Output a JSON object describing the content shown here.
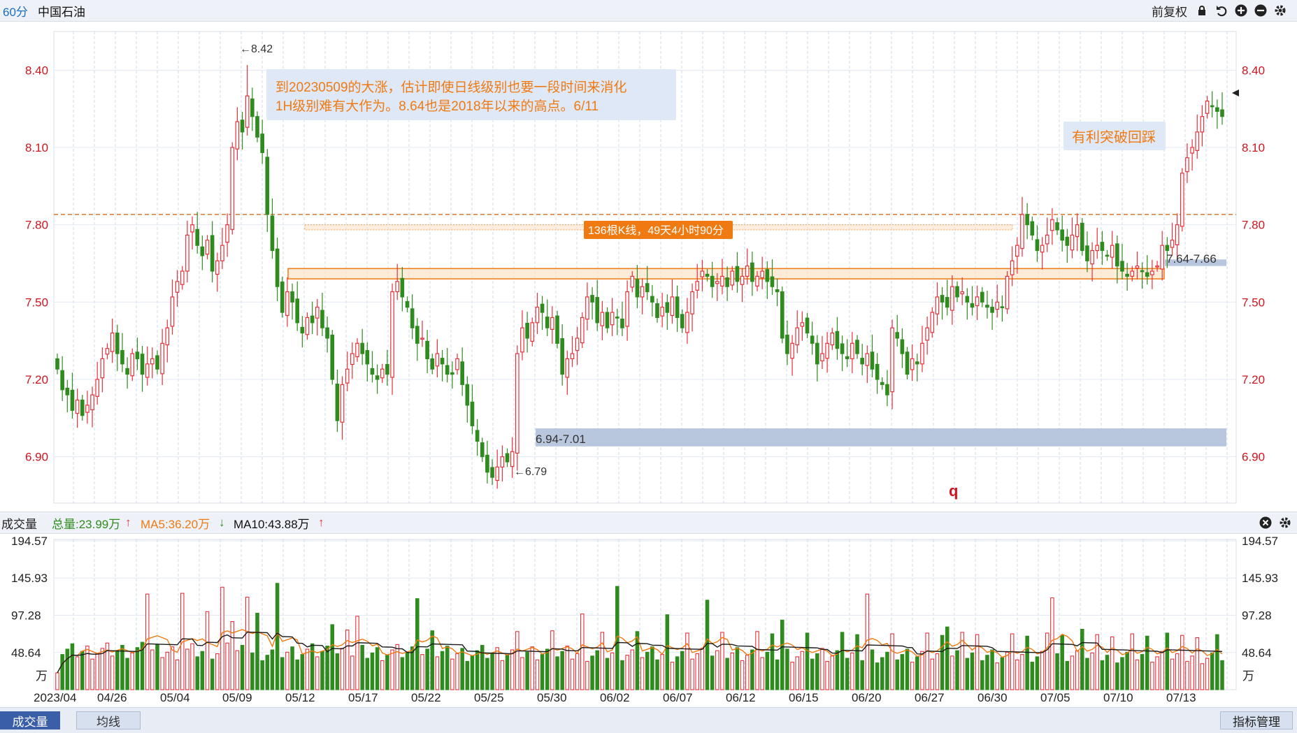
{
  "header": {
    "period": "60分",
    "stock_name": "中国石油",
    "adjust": "前复权",
    "icons": [
      "lock-icon",
      "undo-icon",
      "zoom-in-icon",
      "zoom-out-icon",
      "gear-icon"
    ]
  },
  "colors": {
    "up": "#e8303a",
    "down": "#2e8b1e",
    "ma5": "#f07a12",
    "ma10": "#1a1a1a",
    "band": "#b9c7de",
    "accent": "#1a6fc4"
  },
  "chart_data": {
    "type": "candlestick",
    "price_axis": {
      "ticks": [
        "8.40",
        "8.10",
        "7.80",
        "7.50",
        "7.20",
        "6.90"
      ],
      "range": [
        6.72,
        8.55
      ]
    },
    "x_tick_labels": [
      "2023/04",
      "04/26",
      "05/04",
      "05/09",
      "05/12",
      "05/17",
      "05/22",
      "05/25",
      "05/30",
      "06/02",
      "06/07",
      "06/12",
      "06/15",
      "06/20",
      "06/27",
      "06/30",
      "07/05",
      "07/10",
      "07/13"
    ],
    "dashed_level": 7.84,
    "zones": [
      {
        "label": "7.64-7.66",
        "low": 7.64,
        "high": 7.66
      },
      {
        "label": "6.94-7.01",
        "low": 6.94,
        "high": 7.01
      }
    ],
    "range_boxes": [
      {
        "low": 7.59,
        "high": 7.63
      },
      {
        "low": 7.78,
        "high": 7.8
      }
    ],
    "high_marker": "←8.42",
    "low_marker": "←6.79",
    "annotations": {
      "note1_line1": "到20230509的大涨，估计即使日线级别也要一段时间来消化",
      "note1_line2": "1H级别难有大作为。8.64也是2018年以来的高点。6/11",
      "note2": "有利突破回踩",
      "count_tag": "136根K线，49天4小时90分",
      "marker_q": "q"
    },
    "candles_close": [
      7.24,
      7.16,
      7.14,
      7.08,
      7.12,
      7.06,
      7.1,
      7.14,
      7.2,
      7.28,
      7.32,
      7.38,
      7.3,
      7.26,
      7.22,
      7.3,
      7.28,
      7.22,
      7.26,
      7.28,
      7.24,
      7.34,
      7.4,
      7.52,
      7.58,
      7.62,
      7.76,
      7.8,
      7.72,
      7.68,
      7.74,
      7.62,
      7.66,
      7.72,
      7.8,
      8.1,
      8.2,
      8.16,
      8.3,
      8.22,
      8.14,
      8.08,
      7.84,
      7.7,
      7.56,
      7.46,
      7.54,
      7.5,
      7.42,
      7.38,
      7.44,
      7.42,
      7.48,
      7.4,
      7.36,
      7.2,
      7.04,
      7.18,
      7.24,
      7.3,
      7.34,
      7.3,
      7.26,
      7.22,
      7.2,
      7.24,
      7.22,
      7.54,
      7.58,
      7.52,
      7.48,
      7.4,
      7.34,
      7.36,
      7.28,
      7.24,
      7.3,
      7.26,
      7.22,
      7.22,
      7.28,
      7.18,
      7.1,
      7.02,
      6.96,
      6.9,
      6.84,
      6.82,
      6.86,
      6.9,
      6.88,
      6.92,
      7.3,
      7.4,
      7.36,
      7.42,
      7.48,
      7.46,
      7.4,
      7.44,
      7.34,
      7.22,
      7.28,
      7.3,
      7.36,
      7.44,
      7.52,
      7.5,
      7.42,
      7.46,
      7.4,
      7.46,
      7.44,
      7.4,
      7.54,
      7.6,
      7.52,
      7.56,
      7.54,
      7.5,
      7.44,
      7.48,
      7.46,
      7.52,
      7.44,
      7.4,
      7.46,
      7.54,
      7.58,
      7.62,
      7.6,
      7.56,
      7.58,
      7.6,
      7.56,
      7.62,
      7.58,
      7.6,
      7.64,
      7.58,
      7.6,
      7.62,
      7.58,
      7.56,
      7.54,
      7.36,
      7.3,
      7.34,
      7.4,
      7.42,
      7.38,
      7.34,
      7.26,
      7.3,
      7.34,
      7.38,
      7.32,
      7.3,
      7.28,
      7.34,
      7.3,
      7.26,
      7.3,
      7.24,
      7.2,
      7.18,
      7.14,
      7.4,
      7.36,
      7.3,
      7.22,
      7.28,
      7.26,
      7.34,
      7.4,
      7.46,
      7.52,
      7.5,
      7.48,
      7.56,
      7.52,
      7.54,
      7.5,
      7.48,
      7.52,
      7.5,
      7.48,
      7.46,
      7.5,
      7.48,
      7.6,
      7.66,
      7.72,
      7.84,
      7.8,
      7.76,
      7.7,
      7.72,
      7.76,
      7.82,
      7.78,
      7.74,
      7.72,
      7.76,
      7.8,
      7.7,
      7.66,
      7.7,
      7.72,
      7.7,
      7.68,
      7.72,
      7.64,
      7.62,
      7.6,
      7.62,
      7.64,
      7.62,
      7.6,
      7.62,
      7.64,
      7.72,
      7.7,
      7.74,
      7.8,
      8.0,
      8.06,
      8.1,
      8.16,
      8.22,
      8.28,
      8.26,
      8.24,
      8.22
    ],
    "volume": {
      "title": "成交量",
      "total_label": "总量:23.99万",
      "ma5_label": "MA5:36.20万",
      "ma10_label": "MA10:43.88万",
      "axis_ticks": [
        "194.57",
        "145.93",
        "97.28",
        "48.64"
      ],
      "unit": "万",
      "range": [
        0,
        194.57
      ]
    }
  },
  "bottom": {
    "tab_volume": "成交量",
    "tab_ma": "均线",
    "indicator_manage": "指标管理"
  }
}
